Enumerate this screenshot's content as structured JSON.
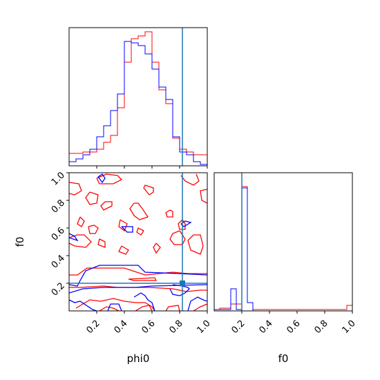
{
  "chart_data": {
    "type": "corner",
    "parameters": [
      "phi0",
      "f0"
    ],
    "truth": {
      "phi0": 0.82,
      "f0": 0.2
    },
    "colors": {
      "series_a": "#ff0000",
      "series_b": "#0000ff",
      "truth": "#1f77b4"
    },
    "axis_labels": {
      "x_left": "phi0",
      "x_right": "f0",
      "y_lower": "f0"
    },
    "ticks": {
      "phi0": {
        "range": [
          0.0,
          1.0
        ],
        "labeled": [
          "0.2",
          "0.4",
          "0.6",
          "0.8",
          "1.0"
        ],
        "values": [
          0.2,
          0.4,
          0.6,
          0.8,
          1.0
        ]
      },
      "f0": {
        "range": [
          0.0,
          1.0
        ],
        "labeled": [
          "0.2",
          "0.4",
          "0.6",
          "0.8",
          "1.0"
        ],
        "values": [
          0.2,
          0.4,
          0.6,
          0.8,
          1.0
        ]
      }
    },
    "hist_phi0": {
      "bins": 20,
      "range": [
        0.0,
        1.0
      ],
      "series": [
        {
          "color": "red",
          "density": [
            0.09,
            0.09,
            0.1,
            0.1,
            0.12,
            0.17,
            0.22,
            0.42,
            0.75,
            0.92,
            0.94,
            0.97,
            0.75,
            0.55,
            0.45,
            0.2,
            0.12,
            0.1,
            0.08,
            0.08
          ]
        },
        {
          "color": "blue",
          "density": [
            0.03,
            0.05,
            0.08,
            0.12,
            0.21,
            0.29,
            0.4,
            0.52,
            0.9,
            0.89,
            0.87,
            0.81,
            0.7,
            0.57,
            0.48,
            0.21,
            0.1,
            0.08,
            0.03,
            0.01
          ]
        }
      ]
    },
    "hist_f0": {
      "bins": 25,
      "range": [
        0.0,
        1.0
      ],
      "series": [
        {
          "color": "red",
          "density": [
            0.01,
            0.02,
            0.02,
            0.05,
            0.05,
            0.9,
            0.06,
            0.01,
            0.01,
            0.01,
            0.01,
            0.01,
            0.01,
            0.01,
            0.01,
            0.01,
            0.01,
            0.01,
            0.01,
            0.01,
            0.01,
            0.01,
            0.01,
            0.01,
            0.04
          ]
        },
        {
          "color": "blue",
          "density": [
            0.01,
            0.01,
            0.01,
            0.16,
            0.01,
            0.89,
            0.06,
            0.0,
            0.0,
            0.0,
            0.0,
            0.0,
            0.0,
            0.0,
            0.0,
            0.0,
            0.0,
            0.0,
            0.0,
            0.0,
            0.0,
            0.0,
            0.0,
            0.0,
            0.0
          ]
        }
      ]
    },
    "contours_2d": [
      {
        "color": "red",
        "paths": [
          [
            [
              0.0,
              0.93
            ],
            [
              0.07,
              0.92
            ],
            [
              0.09,
              0.87
            ],
            [
              0.04,
              0.84
            ],
            [
              0.0,
              0.85
            ]
          ],
          [
            [
              0.2,
              0.96
            ],
            [
              0.27,
              0.99
            ],
            [
              0.35,
              0.98
            ],
            [
              0.38,
              0.95
            ],
            [
              0.32,
              0.92
            ],
            [
              0.22,
              0.92
            ],
            [
              0.2,
              0.96
            ]
          ],
          [
            [
              0.58,
              0.84
            ],
            [
              0.54,
              0.89
            ],
            [
              0.55,
              0.91
            ],
            [
              0.61,
              0.89
            ],
            [
              0.61,
              0.86
            ],
            [
              0.58,
              0.84
            ]
          ],
          [
            [
              0.81,
              0.98
            ],
            [
              0.84,
              0.94
            ],
            [
              0.9,
              0.91
            ],
            [
              0.94,
              0.94
            ],
            [
              0.92,
              0.99
            ]
          ],
          [
            [
              0.15,
              0.86
            ],
            [
              0.12,
              0.82
            ],
            [
              0.15,
              0.77
            ],
            [
              0.2,
              0.78
            ],
            [
              0.21,
              0.84
            ],
            [
              0.15,
              0.86
            ]
          ],
          [
            [
              0.31,
              0.76
            ],
            [
              0.25,
              0.73
            ],
            [
              0.23,
              0.76
            ],
            [
              0.26,
              0.79
            ],
            [
              0.31,
              0.79
            ],
            [
              0.31,
              0.76
            ]
          ],
          [
            [
              0.47,
              0.78
            ],
            [
              0.44,
              0.74
            ],
            [
              0.47,
              0.69
            ],
            [
              0.51,
              0.66
            ],
            [
              0.57,
              0.68
            ],
            [
              0.53,
              0.74
            ],
            [
              0.5,
              0.78
            ],
            [
              0.47,
              0.78
            ]
          ],
          [
            [
              1.0,
              0.88
            ],
            [
              0.95,
              0.87
            ],
            [
              0.96,
              0.8
            ],
            [
              1.0,
              0.78
            ]
          ],
          [
            [
              0.73,
              0.73
            ],
            [
              0.7,
              0.71
            ],
            [
              0.71,
              0.68
            ],
            [
              0.75,
              0.68
            ],
            [
              0.75,
              0.72
            ],
            [
              0.73,
              0.73
            ]
          ],
          [
            [
              0.08,
              0.68
            ],
            [
              0.06,
              0.63
            ],
            [
              0.09,
              0.61
            ],
            [
              0.11,
              0.65
            ],
            [
              0.08,
              0.68
            ]
          ],
          [
            [
              0.14,
              0.61
            ],
            [
              0.15,
              0.56
            ],
            [
              0.19,
              0.56
            ],
            [
              0.21,
              0.6
            ],
            [
              0.18,
              0.62
            ],
            [
              0.14,
              0.61
            ]
          ],
          [
            [
              0.37,
              0.66
            ],
            [
              0.36,
              0.61
            ],
            [
              0.4,
              0.58
            ],
            [
              0.42,
              0.63
            ],
            [
              0.37,
              0.66
            ]
          ],
          [
            [
              0.54,
              0.58
            ],
            [
              0.5,
              0.6
            ],
            [
              0.49,
              0.57
            ],
            [
              0.52,
              0.55
            ],
            [
              0.54,
              0.58
            ]
          ],
          [
            [
              0.82,
              0.66
            ],
            [
              0.79,
              0.63
            ],
            [
              0.8,
              0.59
            ],
            [
              0.84,
              0.59
            ],
            [
              0.84,
              0.63
            ],
            [
              0.82,
              0.66
            ]
          ],
          [
            [
              0.8,
              0.58
            ],
            [
              0.75,
              0.56
            ],
            [
              0.73,
              0.52
            ],
            [
              0.76,
              0.48
            ],
            [
              0.82,
              0.48
            ],
            [
              0.84,
              0.52
            ],
            [
              0.8,
              0.58
            ]
          ],
          [
            [
              0.9,
              0.55
            ],
            [
              0.86,
              0.51
            ],
            [
              0.88,
              0.44
            ],
            [
              0.95,
              0.41
            ],
            [
              0.97,
              0.47
            ],
            [
              0.95,
              0.55
            ],
            [
              0.9,
              0.55
            ]
          ],
          [
            [
              0.0,
              0.53
            ],
            [
              0.06,
              0.55
            ],
            [
              0.11,
              0.55
            ],
            [
              0.16,
              0.5
            ],
            [
              0.12,
              0.46
            ],
            [
              0.04,
              0.47
            ],
            [
              0.0,
              0.49
            ]
          ],
          [
            [
              0.26,
              0.5
            ],
            [
              0.22,
              0.52
            ],
            [
              0.21,
              0.48
            ],
            [
              0.26,
              0.46
            ],
            [
              0.26,
              0.5
            ]
          ],
          [
            [
              0.38,
              0.47
            ],
            [
              0.36,
              0.43
            ],
            [
              0.41,
              0.41
            ],
            [
              0.43,
              0.44
            ],
            [
              0.38,
              0.47
            ]
          ],
          [
            [
              0.63,
              0.49
            ],
            [
              0.61,
              0.46
            ],
            [
              0.63,
              0.42
            ],
            [
              0.66,
              0.46
            ],
            [
              0.63,
              0.49
            ]
          ],
          [
            [
              0.0,
              0.26
            ],
            [
              0.06,
              0.26
            ],
            [
              0.13,
              0.31
            ],
            [
              0.4,
              0.31
            ],
            [
              0.55,
              0.26
            ],
            [
              0.75,
              0.28
            ],
            [
              0.86,
              0.27
            ],
            [
              1.0,
              0.27
            ]
          ],
          [
            [
              0.43,
              0.23
            ],
            [
              0.62,
              0.24
            ],
            [
              0.63,
              0.22
            ],
            [
              0.47,
              0.22
            ],
            [
              0.43,
              0.23
            ]
          ],
          [
            [
              0.0,
              0.17
            ],
            [
              0.08,
              0.17
            ],
            [
              0.25,
              0.18
            ],
            [
              0.35,
              0.17
            ],
            [
              0.58,
              0.17
            ],
            [
              0.75,
              0.16
            ],
            [
              0.85,
              0.14
            ],
            [
              0.95,
              0.15
            ],
            [
              1.0,
              0.15
            ]
          ],
          [
            [
              0.05,
              0.02
            ],
            [
              0.1,
              0.05
            ],
            [
              0.15,
              0.08
            ],
            [
              0.23,
              0.07
            ],
            [
              0.32,
              0.09
            ],
            [
              0.4,
              0.07
            ],
            [
              0.48,
              0.06
            ],
            [
              0.55,
              0.06
            ],
            [
              0.6,
              0.03
            ],
            [
              0.62,
              0.0
            ]
          ],
          [
            [
              0.22,
              0.0
            ],
            [
              0.27,
              0.03
            ],
            [
              0.32,
              0.02
            ],
            [
              0.36,
              0.0
            ]
          ],
          [
            [
              0.48,
              0.0
            ],
            [
              0.53,
              0.03
            ],
            [
              0.58,
              0.04
            ],
            [
              0.6,
              0.0
            ]
          ],
          [
            [
              0.7,
              0.0
            ],
            [
              0.72,
              0.03
            ],
            [
              0.79,
              0.04
            ],
            [
              0.8,
              0.0
            ]
          ],
          [
            [
              0.9,
              0.0
            ],
            [
              0.95,
              0.03
            ],
            [
              1.0,
              0.05
            ]
          ]
        ]
      },
      {
        "color": "blue",
        "paths": [
          [
            [
              0.21,
              0.97
            ],
            [
              0.24,
              0.93
            ],
            [
              0.26,
              0.96
            ],
            [
              0.24,
              0.99
            ],
            [
              0.21,
              0.97
            ]
          ],
          [
            [
              0.38,
              0.61
            ],
            [
              0.42,
              0.57
            ],
            [
              0.46,
              0.57
            ],
            [
              0.46,
              0.61
            ],
            [
              0.38,
              0.61
            ]
          ],
          [
            [
              0.81,
              0.63
            ],
            [
              0.84,
              0.65
            ],
            [
              0.88,
              0.64
            ],
            [
              0.83,
              0.61
            ],
            [
              0.81,
              0.63
            ]
          ],
          [
            [
              0.0,
              0.56
            ],
            [
              0.04,
              0.54
            ],
            [
              0.06,
              0.51
            ],
            [
              0.0,
              0.53
            ]
          ],
          [
            [
              0.0,
              0.19
            ],
            [
              0.06,
              0.18
            ],
            [
              0.08,
              0.22
            ],
            [
              0.12,
              0.29
            ],
            [
              0.22,
              0.33
            ],
            [
              0.5,
              0.33
            ],
            [
              0.55,
              0.28
            ],
            [
              0.8,
              0.27
            ],
            [
              1.0,
              0.26
            ]
          ],
          [
            [
              0.0,
              0.13
            ],
            [
              0.1,
              0.16
            ],
            [
              0.25,
              0.17
            ],
            [
              0.48,
              0.17
            ],
            [
              0.6,
              0.18
            ],
            [
              1.0,
              0.19
            ]
          ],
          [
            [
              0.0,
              0.08
            ],
            [
              0.04,
              0.06
            ],
            [
              0.08,
              0.07
            ],
            [
              0.17,
              0.01
            ],
            [
              0.2,
              0.0
            ]
          ],
          [
            [
              0.28,
              0.0
            ],
            [
              0.3,
              0.05
            ],
            [
              0.36,
              0.05
            ],
            [
              0.38,
              0.0
            ]
          ],
          [
            [
              0.47,
              0.1
            ],
            [
              0.52,
              0.13
            ],
            [
              0.55,
              0.11
            ],
            [
              0.57,
              0.08
            ],
            [
              0.6,
              0.06
            ],
            [
              0.62,
              0.0
            ]
          ],
          [
            [
              0.86,
              0.0
            ],
            [
              0.88,
              0.07
            ],
            [
              0.93,
              0.1
            ],
            [
              0.97,
              0.08
            ],
            [
              1.0,
              0.07
            ]
          ],
          [
            [
              0.75,
              0.19
            ],
            [
              0.82,
              0.18
            ],
            [
              0.86,
              0.17
            ],
            [
              0.87,
              0.16
            ],
            [
              0.84,
              0.13
            ],
            [
              0.8,
              0.11
            ],
            [
              0.75,
              0.12
            ],
            [
              0.73,
              0.16
            ]
          ]
        ]
      }
    ]
  }
}
